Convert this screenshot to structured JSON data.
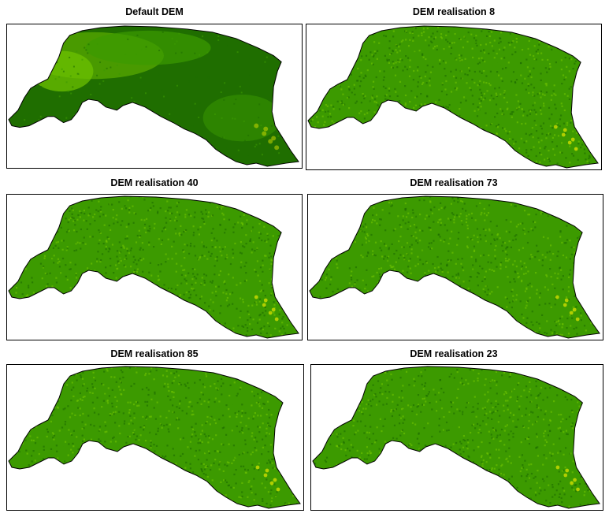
{
  "panels": [
    {
      "title": "Default DEM",
      "variant": "default"
    },
    {
      "title": "DEM realisation 8",
      "variant": "realisation"
    },
    {
      "title": "DEM realisation 40",
      "variant": "realisation"
    },
    {
      "title": "DEM realisation 73",
      "variant": "realisation"
    },
    {
      "title": "DEM realisation 85",
      "variant": "realisation"
    },
    {
      "title": "DEM realisation 23",
      "variant": "realisation"
    }
  ],
  "colors": {
    "outline": "#000000",
    "dark_green": "#1f6e00",
    "mid_green": "#3c9a00",
    "light_green": "#6cc000",
    "yellow": "#d8e000"
  }
}
